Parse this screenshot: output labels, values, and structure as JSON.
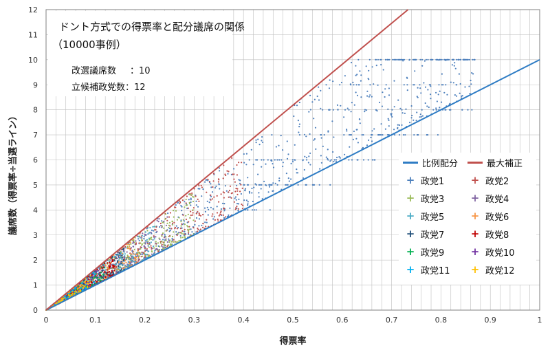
{
  "chart_data": {
    "type": "scatter",
    "title_lines": [
      "ドント方式での得票率と配分議席の関係",
      "（10000事例）"
    ],
    "params": [
      {
        "label": "改選議席数",
        "sep": "：",
        "value": "10"
      },
      {
        "label": "立候補政党数",
        "sep": "：",
        "value": "12"
      }
    ],
    "xlabel": "得票率",
    "ylabel": "議席数（得票率÷当選ライン）",
    "xlim": [
      0,
      1
    ],
    "ylim": [
      0,
      12
    ],
    "x_ticks": [
      "0",
      "0.1",
      "0.2",
      "0.3",
      "0.4",
      "0.5",
      "0.6",
      "0.7",
      "0.8",
      "0.9",
      "1"
    ],
    "y_ticks": [
      "0",
      "1",
      "2",
      "3",
      "4",
      "5",
      "6",
      "7",
      "8",
      "9",
      "10",
      "11",
      "12"
    ],
    "grid": true,
    "legend_position": "right-middle",
    "lines": [
      {
        "name": "比例配分",
        "color": "#2e7cc4",
        "x": [
          0,
          1
        ],
        "y": [
          0,
          10
        ]
      },
      {
        "name": "最大補正",
        "color": "#c0504d",
        "x": [
          0,
          0.7333
        ],
        "y": [
          0,
          12
        ]
      }
    ],
    "series": [
      {
        "name": "政党1",
        "color": "#4f81bd",
        "x_range": [
          0.05,
          0.87
        ]
      },
      {
        "name": "政党2",
        "color": "#c0504d",
        "x_range": [
          0.03,
          0.4
        ]
      },
      {
        "name": "政党3",
        "color": "#9bbb59",
        "x_range": [
          0.02,
          0.3
        ]
      },
      {
        "name": "政党4",
        "color": "#8064a2",
        "x_range": [
          0.02,
          0.25
        ]
      },
      {
        "name": "政党5",
        "color": "#4bacc6",
        "x_range": [
          0.01,
          0.22
        ]
      },
      {
        "name": "政党6",
        "color": "#f79646",
        "x_range": [
          0.01,
          0.19
        ]
      },
      {
        "name": "政党7",
        "color": "#1f4e79",
        "x_range": [
          0.0,
          0.16
        ]
      },
      {
        "name": "政党8",
        "color": "#c00000",
        "x_range": [
          0.0,
          0.14
        ]
      },
      {
        "name": "政党9",
        "color": "#00b050",
        "x_range": [
          0.0,
          0.12
        ]
      },
      {
        "name": "政党10",
        "color": "#7030a0",
        "x_range": [
          0.0,
          0.11
        ]
      },
      {
        "name": "政党11",
        "color": "#00b0f0",
        "x_range": [
          0.0,
          0.1
        ]
      },
      {
        "name": "政党12",
        "color": "#ffc000",
        "x_range": [
          0.0,
          0.09
        ]
      }
    ]
  }
}
